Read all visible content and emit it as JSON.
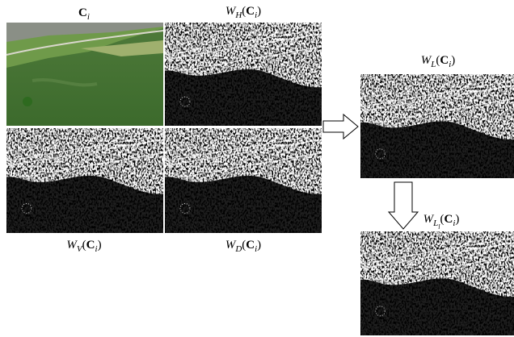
{
  "figure": {
    "panels": [
      {
        "label": [
          {
            "text": "C",
            "style": "bold"
          },
          {
            "text": "i",
            "style": "italic",
            "level": 1
          }
        ]
      },
      {
        "label": [
          {
            "text": "W",
            "style": "italic"
          },
          {
            "text": "H",
            "style": "italic",
            "level": 1
          },
          {
            "text": "(",
            "style": "roman"
          },
          {
            "text": "C",
            "style": "bold"
          },
          {
            "text": "i",
            "style": "italic",
            "level": 1
          },
          {
            "text": ")",
            "style": "roman"
          }
        ]
      },
      {
        "label": [
          {
            "text": "W",
            "style": "italic"
          },
          {
            "text": "V",
            "style": "italic",
            "level": 1
          },
          {
            "text": "(",
            "style": "roman"
          },
          {
            "text": "C",
            "style": "bold"
          },
          {
            "text": "i",
            "style": "italic",
            "level": 1
          },
          {
            "text": ")",
            "style": "roman"
          }
        ]
      },
      {
        "label": [
          {
            "text": "W",
            "style": "italic"
          },
          {
            "text": "D",
            "style": "italic",
            "level": 1
          },
          {
            "text": "(",
            "style": "roman"
          },
          {
            "text": "C",
            "style": "bold"
          },
          {
            "text": "i",
            "style": "italic",
            "level": 1
          },
          {
            "text": ")",
            "style": "roman"
          }
        ]
      },
      {
        "label": [
          {
            "text": "W",
            "style": "italic"
          },
          {
            "text": "L",
            "style": "italic",
            "level": 1
          },
          {
            "text": "(",
            "style": "roman"
          },
          {
            "text": "C",
            "style": "bold"
          },
          {
            "text": "i",
            "style": "italic",
            "level": 1
          },
          {
            "text": ")",
            "style": "roman"
          }
        ]
      },
      {
        "label": [
          {
            "text": "W",
            "style": "italic"
          },
          {
            "text": "L",
            "style": "italic",
            "level": 1
          },
          {
            "text": "l",
            "style": "italic",
            "level": 2
          },
          {
            "text": "(",
            "style": "roman"
          },
          {
            "text": "C",
            "style": "bold"
          },
          {
            "text": "i",
            "style": "italic",
            "level": 1
          },
          {
            "text": ")",
            "style": "roman"
          }
        ]
      }
    ]
  }
}
